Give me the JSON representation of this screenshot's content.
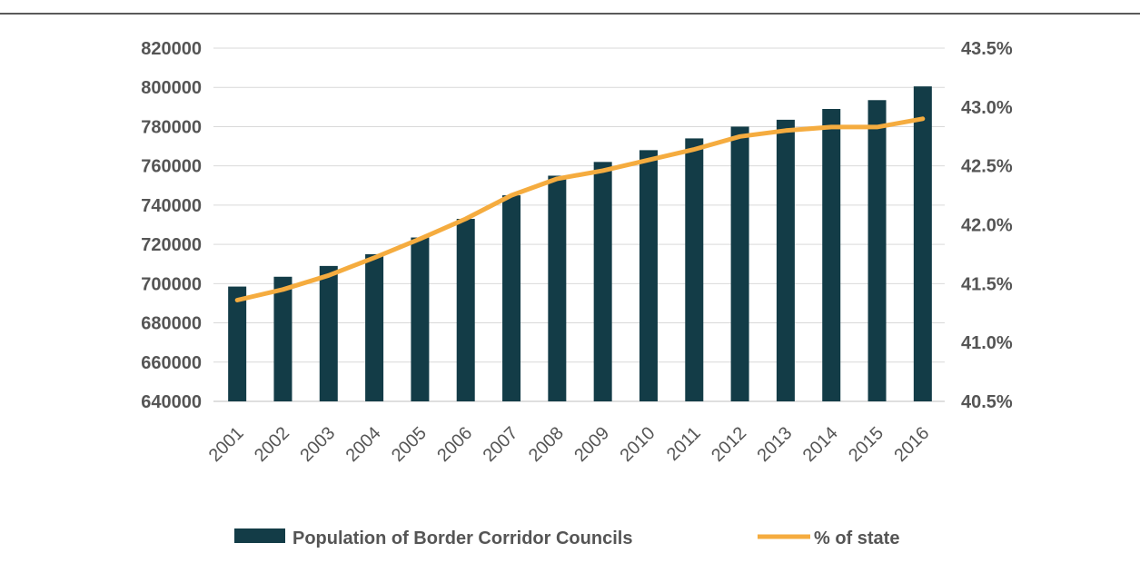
{
  "chart_data": {
    "type": "bar",
    "categories": [
      "2001",
      "2002",
      "2003",
      "2004",
      "2005",
      "2006",
      "2007",
      "2008",
      "2009",
      "2010",
      "2011",
      "2012",
      "2013",
      "2014",
      "2015",
      "2016"
    ],
    "series": [
      {
        "name": "Population of Border Corridor Councils",
        "type": "bar",
        "axis": "left",
        "color": "#133c47",
        "values": [
          698500,
          703500,
          709000,
          715000,
          723500,
          733000,
          745000,
          755000,
          762000,
          768000,
          774000,
          780000,
          783500,
          789000,
          793500,
          800500
        ]
      },
      {
        "name": "% of state",
        "type": "line",
        "axis": "right",
        "color": "#f5ac3f",
        "values": [
          41.36,
          41.45,
          41.57,
          41.72,
          41.88,
          42.05,
          42.25,
          42.39,
          42.46,
          42.55,
          42.64,
          42.75,
          42.8,
          42.83,
          42.83,
          42.9
        ]
      }
    ],
    "y_left": {
      "min": 640000,
      "max": 820000,
      "step": 20000,
      "ticks": [
        "820000",
        "800000",
        "780000",
        "760000",
        "740000",
        "720000",
        "700000",
        "680000",
        "660000",
        "640000"
      ]
    },
    "y_right": {
      "min": 40.5,
      "max": 43.5,
      "step": 0.5,
      "ticks": [
        "43.5%",
        "43.0%",
        "42.5%",
        "42.0%",
        "41.5%",
        "41.0%",
        "40.5%"
      ]
    },
    "grid": true,
    "legend": {
      "position": "bottom",
      "items": [
        "Population of Border Corridor Councils",
        "% of state"
      ]
    },
    "title": "",
    "xlabel": "",
    "ylabel": ""
  }
}
